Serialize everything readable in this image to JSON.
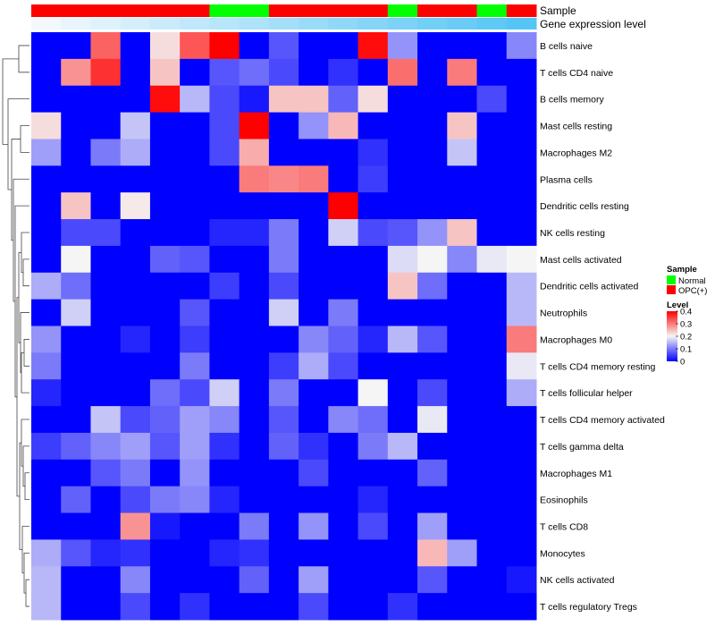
{
  "chart_data": {
    "type": "heatmap",
    "annotations": {
      "sample_label": "Sample",
      "level_label": "Gene expression level",
      "sample_groups": [
        "OPC(+)",
        "OPC(+)",
        "OPC(+)",
        "OPC(+)",
        "OPC(+)",
        "OPC(+)",
        "Normal",
        "Normal",
        "OPC(+)",
        "OPC(+)",
        "OPC(+)",
        "OPC(+)",
        "Normal",
        "OPC(+)",
        "OPC(+)",
        "Normal",
        "OPC(+)"
      ],
      "level_values": [
        0.02,
        0.04,
        0.06,
        0.08,
        0.1,
        0.12,
        0.14,
        0.16,
        0.18,
        0.2,
        0.22,
        0.24,
        0.26,
        0.28,
        0.3,
        0.32,
        0.34
      ]
    },
    "rows": [
      "B cells naive",
      "T cells CD4 naive",
      "B cells memory",
      "Mast cells resting",
      "Macrophages M2",
      "Plasma cells",
      "Dendritic cells resting",
      "NK cells resting",
      "Mast cells activated",
      "Dendritic cells activated",
      "Neutrophils",
      "Macrophages M0",
      "T cells CD4 memory resting",
      "T cells follicular helper",
      "T cells CD4 memory activated",
      "T cells gamma delta",
      "Macrophages M1",
      "Eosinophils",
      "T cells CD8",
      "Monocytes",
      "NK cells activated",
      "T cells regulatory  Tregs"
    ],
    "values": [
      [
        0.0,
        0.0,
        0.32,
        0.0,
        0.22,
        0.33,
        0.4,
        0.0,
        0.07,
        0.0,
        0.0,
        0.39,
        0.12,
        0.0,
        0.0,
        0.0,
        0.11
      ],
      [
        0.0,
        0.28,
        0.36,
        0.0,
        0.24,
        0.0,
        0.07,
        0.09,
        0.06,
        0.0,
        0.04,
        0.0,
        0.31,
        0.0,
        0.3,
        0.0,
        0.0
      ],
      [
        0.0,
        0.0,
        0.0,
        0.0,
        0.39,
        0.15,
        0.06,
        0.02,
        0.24,
        0.24,
        0.08,
        0.22,
        0.0,
        0.0,
        0.0,
        0.06,
        0.0
      ],
      [
        0.22,
        0.0,
        0.0,
        0.16,
        0.0,
        0.0,
        0.06,
        0.4,
        0.0,
        0.12,
        0.25,
        0.0,
        0.0,
        0.0,
        0.24,
        0.0,
        0.0
      ],
      [
        0.13,
        0.0,
        0.1,
        0.14,
        0.0,
        0.0,
        0.06,
        0.26,
        0.0,
        0.0,
        0.0,
        0.04,
        0.0,
        0.0,
        0.16,
        0.0,
        0.0
      ],
      [
        0.0,
        0.0,
        0.0,
        0.0,
        0.0,
        0.0,
        0.0,
        0.3,
        0.29,
        0.3,
        0.0,
        0.05,
        0.0,
        0.0,
        0.0,
        0.0,
        0.0
      ],
      [
        0.0,
        0.24,
        0.0,
        0.21,
        0.0,
        0.0,
        0.0,
        0.0,
        0.0,
        0.0,
        0.4,
        0.0,
        0.0,
        0.0,
        0.0,
        0.0,
        0.0
      ],
      [
        0.0,
        0.06,
        0.06,
        0.0,
        0.0,
        0.0,
        0.03,
        0.03,
        0.1,
        0.0,
        0.17,
        0.06,
        0.07,
        0.12,
        0.24,
        0.0,
        0.0
      ],
      [
        0.0,
        0.2,
        0.0,
        0.0,
        0.08,
        0.07,
        0.0,
        0.0,
        0.1,
        0.0,
        0.0,
        0.0,
        0.18,
        0.2,
        0.11,
        0.19,
        0.2
      ],
      [
        0.14,
        0.09,
        0.0,
        0.0,
        0.0,
        0.0,
        0.05,
        0.0,
        0.06,
        0.0,
        0.0,
        0.0,
        0.24,
        0.09,
        0.0,
        0.0,
        0.15
      ],
      [
        0.0,
        0.17,
        0.0,
        0.0,
        0.0,
        0.07,
        0.0,
        0.0,
        0.17,
        0.0,
        0.1,
        0.0,
        0.0,
        0.0,
        0.0,
        0.0,
        0.15
      ],
      [
        0.12,
        0.0,
        0.0,
        0.03,
        0.0,
        0.05,
        0.0,
        0.0,
        0.0,
        0.11,
        0.08,
        0.03,
        0.15,
        0.07,
        0.0,
        0.0,
        0.3
      ],
      [
        0.1,
        0.0,
        0.0,
        0.0,
        0.0,
        0.1,
        0.0,
        0.0,
        0.05,
        0.14,
        0.06,
        0.0,
        0.0,
        0.0,
        0.0,
        0.0,
        0.19
      ],
      [
        0.03,
        0.0,
        0.0,
        0.0,
        0.09,
        0.06,
        0.17,
        0.0,
        0.1,
        0.0,
        0.0,
        0.2,
        0.0,
        0.06,
        0.0,
        0.0,
        0.14
      ],
      [
        0.0,
        0.0,
        0.16,
        0.06,
        0.08,
        0.13,
        0.11,
        0.0,
        0.07,
        0.0,
        0.11,
        0.09,
        0.0,
        0.19,
        0.0,
        0.0,
        0.0
      ],
      [
        0.05,
        0.08,
        0.11,
        0.13,
        0.07,
        0.13,
        0.04,
        0.0,
        0.08,
        0.04,
        0.0,
        0.1,
        0.15,
        0.0,
        0.0,
        0.0,
        0.0
      ],
      [
        0.0,
        0.0,
        0.07,
        0.1,
        0.0,
        0.12,
        0.0,
        0.0,
        0.0,
        0.06,
        0.0,
        0.0,
        0.0,
        0.08,
        0.0,
        0.0,
        0.0
      ],
      [
        0.0,
        0.08,
        0.0,
        0.06,
        0.1,
        0.11,
        0.03,
        0.0,
        0.0,
        0.0,
        0.0,
        0.03,
        0.0,
        0.0,
        0.0,
        0.0,
        0.0
      ],
      [
        0.0,
        0.0,
        0.0,
        0.28,
        0.02,
        0.0,
        0.0,
        0.1,
        0.0,
        0.12,
        0.0,
        0.06,
        0.0,
        0.13,
        0.0,
        0.0,
        0.0
      ],
      [
        0.14,
        0.07,
        0.03,
        0.04,
        0.0,
        0.0,
        0.03,
        0.04,
        0.0,
        0.0,
        0.0,
        0.0,
        0.0,
        0.25,
        0.13,
        0.0,
        0.0
      ],
      [
        0.15,
        0.0,
        0.0,
        0.11,
        0.0,
        0.0,
        0.0,
        0.08,
        0.0,
        0.13,
        0.0,
        0.0,
        0.0,
        0.07,
        0.0,
        0.0,
        0.02
      ],
      [
        0.15,
        0.0,
        0.0,
        0.06,
        0.0,
        0.04,
        0.0,
        0.0,
        0.0,
        0.06,
        0.0,
        0.0,
        0.04,
        0.0,
        0.0,
        0.0,
        0.0
      ]
    ],
    "color_scale": {
      "min": 0,
      "max": 0.4,
      "low": "#0000ff",
      "mid": "#f5f5f5",
      "mid_value": 0.2,
      "high": "#ff0000"
    },
    "legend": {
      "sample_title": "Sample",
      "sample_entries": [
        {
          "label": "Normal",
          "color": "#00ff00"
        },
        {
          "label": "OPC(+)",
          "color": "#ff0000"
        }
      ],
      "level_title": "Level",
      "level_ticks": [
        "0.4",
        "0.3",
        "0.2",
        "0.1",
        "0"
      ],
      "level_tick_values": [
        0.4,
        0.3,
        0.2,
        0.1,
        0.0
      ]
    },
    "annotation_level_colors": {
      "low": "#f2f8fc",
      "high": "#55c5f5"
    }
  }
}
